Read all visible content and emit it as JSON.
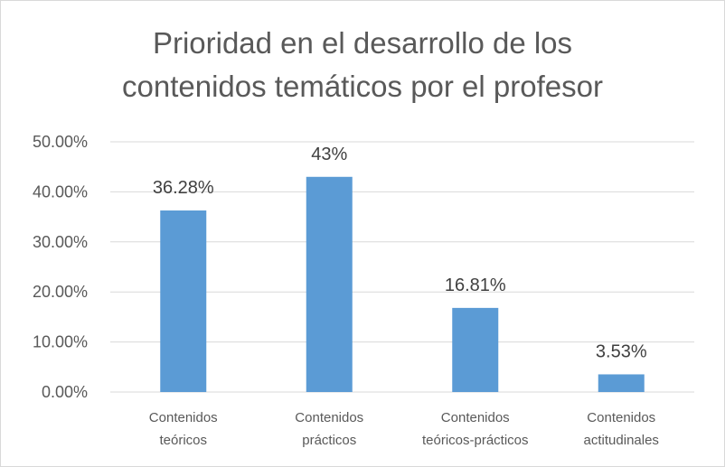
{
  "chart_data": {
    "type": "bar",
    "title_lines": [
      "Prioridad en el desarrollo de los",
      "contenidos temáticos por el profesor"
    ],
    "categories": [
      [
        "Contenidos",
        "teóricos"
      ],
      [
        "Contenidos",
        "prácticos"
      ],
      [
        "Contenidos",
        "teóricos-prácticos"
      ],
      [
        "Contenidos",
        "actitudinales"
      ]
    ],
    "values": [
      36.28,
      43,
      16.81,
      3.53
    ],
    "data_labels": [
      "36.28%",
      "43%",
      "16.81%",
      "3.53%"
    ],
    "y_ticks": [
      0,
      10,
      20,
      30,
      40,
      50
    ],
    "y_tick_labels": [
      "0.00%",
      "10.00%",
      "20.00%",
      "30.00%",
      "40.00%",
      "50.00%"
    ],
    "ylim": [
      0,
      50
    ],
    "grid": true,
    "legend": "none",
    "bar_color": "#5b9bd5",
    "grid_color": "#d9d9d9"
  }
}
